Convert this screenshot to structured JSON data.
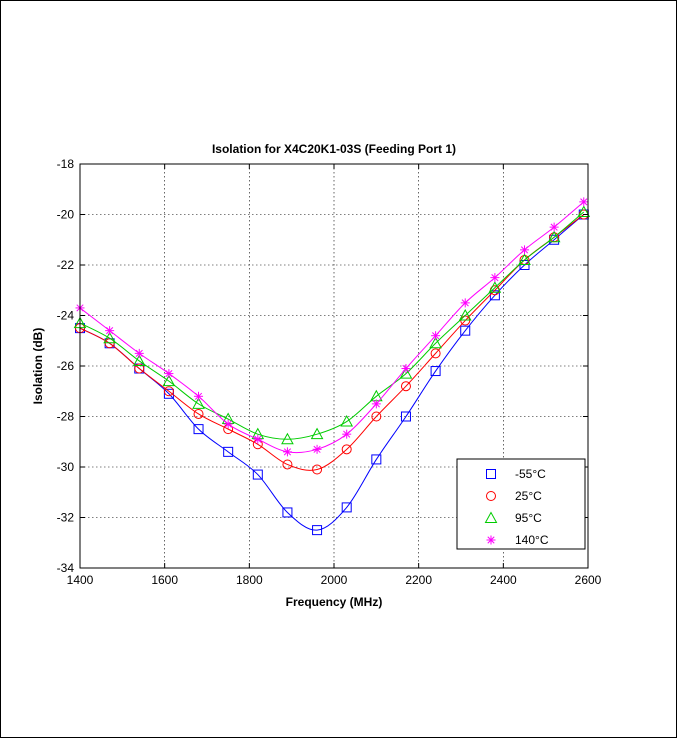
{
  "chart_data": {
    "type": "line",
    "title": "Isolation for X4C20K1-03S (Feeding Port 1)",
    "xlabel": "Frequency (MHz)",
    "ylabel": "Isolation (dB)",
    "xlim": [
      1400,
      2600
    ],
    "ylim": [
      -34,
      -18
    ],
    "xticks": [
      1400,
      1600,
      1800,
      2000,
      2200,
      2400,
      2600
    ],
    "yticks": [
      -34,
      -32,
      -30,
      -28,
      -26,
      -24,
      -22,
      -20,
      -18
    ],
    "xtick_labels": [
      "1400",
      "1600",
      "1800",
      "2000",
      "2200",
      "2400",
      "2600"
    ],
    "ytick_labels": [
      "-34",
      "-32",
      "-30",
      "-28",
      "-26",
      "-24",
      "-22",
      "-20",
      "-18"
    ],
    "grid": true,
    "legend_position": "bottom-right",
    "series": [
      {
        "name": "-55°C",
        "color": "#0000ff",
        "marker": "square",
        "x": [
          1400,
          1470,
          1540,
          1610,
          1680,
          1750,
          1820,
          1890,
          1960,
          2030,
          2100,
          2170,
          2240,
          2310,
          2380,
          2450,
          2520,
          2590
        ],
        "y": [
          -24.5,
          -25.1,
          -26.1,
          -27.1,
          -28.5,
          -29.4,
          -30.3,
          -31.8,
          -32.5,
          -31.6,
          -29.7,
          -28.0,
          -26.2,
          -24.6,
          -23.2,
          -22.0,
          -21.0,
          -20.0
        ]
      },
      {
        "name": "25°C",
        "color": "#ff0000",
        "marker": "circle",
        "x": [
          1400,
          1470,
          1540,
          1610,
          1680,
          1750,
          1820,
          1890,
          1960,
          2030,
          2100,
          2170,
          2240,
          2310,
          2380,
          2450,
          2520,
          2590
        ],
        "y": [
          -24.5,
          -25.1,
          -26.1,
          -27.0,
          -27.9,
          -28.5,
          -29.1,
          -29.9,
          -30.1,
          -29.3,
          -28.0,
          -26.8,
          -25.5,
          -24.2,
          -23.0,
          -21.8,
          -20.9,
          -20.0
        ]
      },
      {
        "name": "95°C",
        "color": "#00cc00",
        "marker": "triangle",
        "x": [
          1400,
          1470,
          1540,
          1610,
          1680,
          1750,
          1820,
          1890,
          1960,
          2030,
          2100,
          2170,
          2240,
          2310,
          2380,
          2450,
          2520,
          2590
        ],
        "y": [
          -24.3,
          -24.9,
          -25.8,
          -26.6,
          -27.5,
          -28.1,
          -28.7,
          -28.9,
          -28.7,
          -28.2,
          -27.2,
          -26.3,
          -25.1,
          -24.0,
          -22.9,
          -21.8,
          -20.9,
          -19.9
        ]
      },
      {
        "name": "140°C",
        "color": "#ff00ff",
        "marker": "star",
        "x": [
          1400,
          1470,
          1540,
          1610,
          1680,
          1750,
          1820,
          1890,
          1960,
          2030,
          2100,
          2170,
          2240,
          2310,
          2380,
          2450,
          2520,
          2590
        ],
        "y": [
          -23.7,
          -24.6,
          -25.5,
          -26.3,
          -27.2,
          -28.3,
          -28.9,
          -29.4,
          -29.3,
          -28.7,
          -27.5,
          -26.1,
          -24.8,
          -23.5,
          -22.5,
          -21.4,
          -20.5,
          -19.5
        ]
      }
    ]
  }
}
